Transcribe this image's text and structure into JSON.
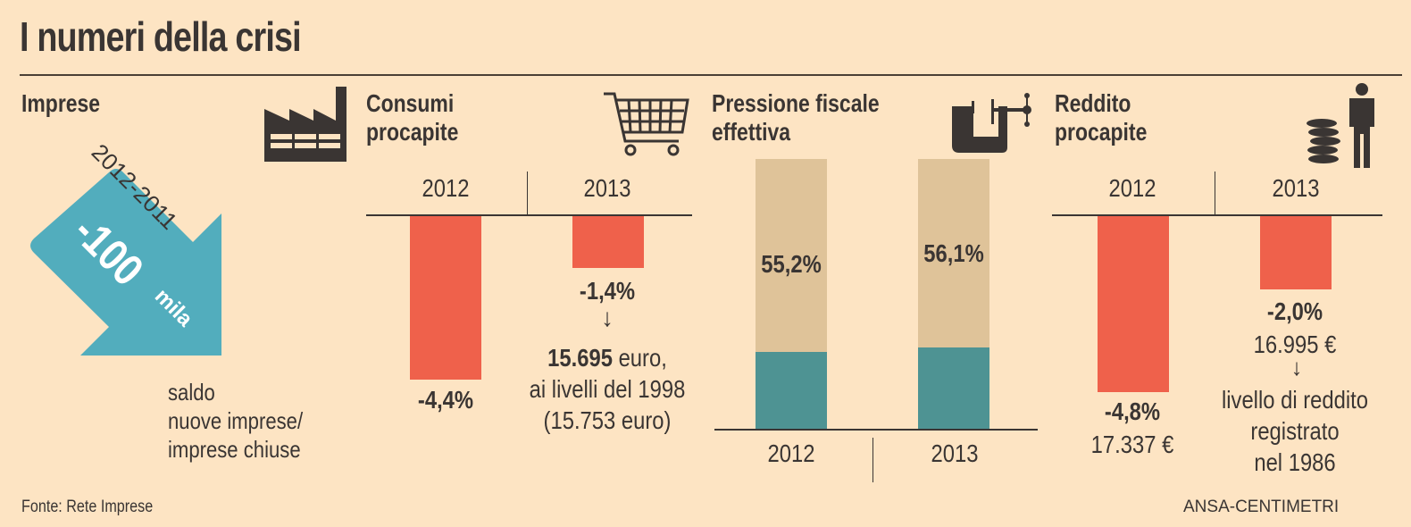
{
  "title": "I numeri della crisi",
  "colors": {
    "background": "#fde4c3",
    "negative_bar": "#ef614b",
    "teal_bar": "#4e9393",
    "tan_bar": "#dfc399",
    "arrow": "#52adbd",
    "text": "#3a3533"
  },
  "sections": {
    "imprese": {
      "title": "Imprese",
      "icon": "factory-icon",
      "period": "2012-2011",
      "value": "-100",
      "unit": "mila",
      "note": "saldo\nnuove imprese/\nimprese chiuse"
    },
    "consumi": {
      "title": "Consumi\nprocapite",
      "icon": "shopping-cart-icon",
      "years": [
        "2012",
        "2013"
      ],
      "labels": [
        "-4,4%",
        "-1,4%"
      ],
      "arrow_glyph": "↓",
      "note_bold": "15.695",
      "note_rest": " euro,",
      "note_line2": "ai livelli del 1998",
      "note_line3": "(15.753 euro)"
    },
    "pressione": {
      "title": "Pressione fiscale\neffettiva",
      "icon": "clamp-icon",
      "years": [
        "2012",
        "2013"
      ],
      "labels": [
        "55,2%",
        "56,1%"
      ]
    },
    "reddito": {
      "title": "Reddito\nprocapite",
      "icon": "coins-person-icon",
      "years": [
        "2012",
        "2013"
      ],
      "labels": [
        "-4,8%",
        "-2,0%"
      ],
      "amounts": [
        "17.337 €",
        "16.995 €"
      ],
      "arrow_glyph": "↓",
      "note_lines": [
        "livello di reddito",
        "registrato",
        "nel 1986"
      ]
    }
  },
  "footer": {
    "source": "Fonte: Rete Imprese",
    "credit": "ANSA-CENTIMETRI"
  },
  "chart_data": [
    {
      "type": "bar",
      "title": "Consumi procapite",
      "categories": [
        "2012",
        "2013"
      ],
      "values": [
        -4.4,
        -1.4
      ],
      "unit": "%",
      "ylim": [
        -5,
        0
      ]
    },
    {
      "type": "bar",
      "title": "Pressione fiscale effettiva",
      "categories": [
        "2012",
        "2013"
      ],
      "values": [
        55.2,
        56.1
      ],
      "unit": "%",
      "ylim": [
        0,
        100
      ]
    },
    {
      "type": "bar",
      "title": "Reddito procapite",
      "categories": [
        "2012",
        "2013"
      ],
      "values": [
        -4.8,
        -2.0
      ],
      "amounts_eur": [
        17337,
        16995
      ],
      "unit": "%",
      "ylim": [
        -5,
        0
      ]
    },
    {
      "type": "bar",
      "title": "Imprese (saldo nuove imprese/imprese chiuse)",
      "categories": [
        "2012-2011"
      ],
      "values": [
        -100000
      ]
    }
  ]
}
